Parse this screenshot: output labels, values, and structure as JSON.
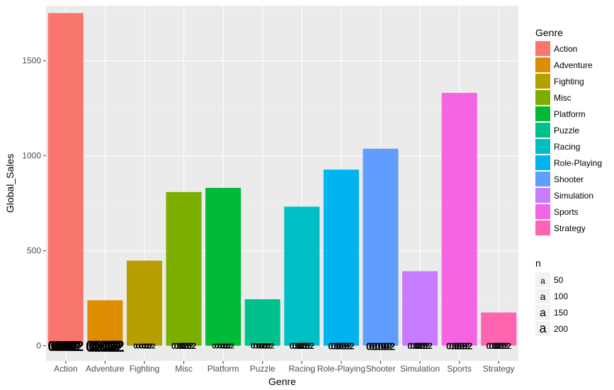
{
  "chart_data": {
    "type": "bar",
    "xlabel": "Genre",
    "ylabel": "Global_Sales",
    "ylim": [
      -80,
      1790
    ],
    "y_ticks": [
      0,
      500,
      1000,
      1500
    ],
    "grid": true,
    "legend_position": "right",
    "categories": [
      "Action",
      "Adventure",
      "Fighting",
      "Misc",
      "Platform",
      "Puzzle",
      "Racing",
      "Role-Playing",
      "Shooter",
      "Simulation",
      "Sports",
      "Strategy"
    ],
    "values": [
      1751,
      239,
      448,
      809,
      831,
      245,
      732,
      927,
      1037,
      392,
      1331,
      175
    ],
    "colors": [
      "#F8766D",
      "#DE8C00",
      "#B79F00",
      "#7CAE00",
      "#00BA38",
      "#00C08B",
      "#00BFC4",
      "#00B4F0",
      "#619CFF",
      "#C77CFF",
      "#F564E3",
      "#FF64B0"
    ],
    "bar_label_text": [
      "0.02",
      "0.02",
      "0.02",
      "0.02",
      "0.02",
      "0.02",
      "0.02",
      "0.02",
      "0.02",
      "0.02",
      "0.02",
      "0.02"
    ],
    "legend": {
      "title": "Genre",
      "entries": [
        "Action",
        "Adventure",
        "Fighting",
        "Misc",
        "Platform",
        "Puzzle",
        "Racing",
        "Role-Playing",
        "Shooter",
        "Simulation",
        "Sports",
        "Strategy"
      ]
    },
    "size_legend": {
      "title": "n",
      "glyph": "a",
      "values": [
        "50",
        "100",
        "150",
        "200"
      ]
    }
  }
}
